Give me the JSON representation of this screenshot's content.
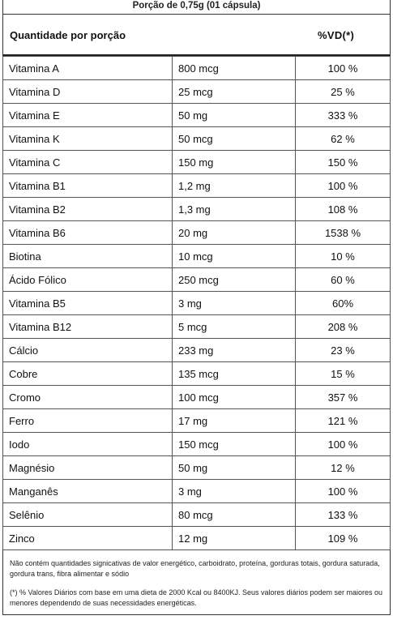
{
  "serving": "Porção de 0,75g (01 cápsula)",
  "header": {
    "left": "Quantidade por porção",
    "right": "%VD(*)"
  },
  "rows": [
    {
      "name": "Vitamina A",
      "amount": "800 mcg",
      "vd": "100 %"
    },
    {
      "name": "Vitamina D",
      "amount": "25 mcg",
      "vd": "25 %"
    },
    {
      "name": "Vitamina E",
      "amount": "50 mg",
      "vd": "333 %"
    },
    {
      "name": "Vitamina K",
      "amount": "50 mcg",
      "vd": "62 %"
    },
    {
      "name": "Vitamina C",
      "amount": "150 mg",
      "vd": "150 %"
    },
    {
      "name": "Vitamina B1",
      "amount": "1,2 mg",
      "vd": "100 %"
    },
    {
      "name": "Vitamina B2",
      "amount": "1,3 mg",
      "vd": "108 %"
    },
    {
      "name": "Vitamina B6",
      "amount": "20 mg",
      "vd": "1538 %"
    },
    {
      "name": "Biotina",
      "amount": "10 mcg",
      "vd": "10 %"
    },
    {
      "name": "Ácido Fólico",
      "amount": "250 mcg",
      "vd": "60 %"
    },
    {
      "name": "Vitamina B5",
      "amount": "3 mg",
      "vd": "60%"
    },
    {
      "name": "Vitamina B12",
      "amount": "5 mcg",
      "vd": "208 %"
    },
    {
      "name": "Cálcio",
      "amount": "233 mg",
      "vd": "23 %"
    },
    {
      "name": "Cobre",
      "amount": "135 mcg",
      "vd": "15 %"
    },
    {
      "name": "Cromo",
      "amount": "100 mcg",
      "vd": "357 %"
    },
    {
      "name": "Ferro",
      "amount": "17 mg",
      "vd": "121 %"
    },
    {
      "name": "Iodo",
      "amount": "150 mcg",
      "vd": "100 %"
    },
    {
      "name": "Magnésio",
      "amount": "50 mg",
      "vd": "12 %"
    },
    {
      "name": "Manganês",
      "amount": "3 mg",
      "vd": "100 %"
    },
    {
      "name": "Selênio",
      "amount": "80 mcg",
      "vd": "133 %"
    },
    {
      "name": "Zinco",
      "amount": "12 mg",
      "vd": "109 %"
    }
  ],
  "notes": {
    "line1": "Não contém quantidades signicativas de valor energético, carboidrato, proteína, gorduras totais, gordura saturada, gordura trans, fibra alimentar e sódio",
    "line2": "(*) % Valores Diários com base em uma dieta de 2000 Kcal ou 8400KJ. Seus valores diários podem ser maiores ou menores dependendo de suas necessidades energéticas."
  }
}
